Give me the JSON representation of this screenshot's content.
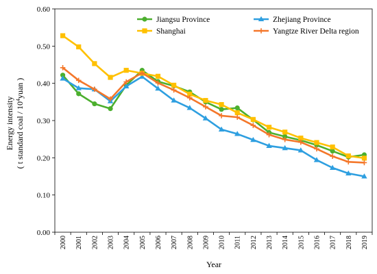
{
  "chart_data": {
    "type": "line",
    "xlabel": "Year",
    "ylabel_line1": "Energy intensity",
    "ylabel_line2_pre": "( t standard coal / 10",
    "ylabel_line2_sup": "4",
    "ylabel_line2_post": "yuan )",
    "categories": [
      "2000",
      "2001",
      "2002",
      "2003",
      "2004",
      "2005",
      "2006",
      "2007",
      "2008",
      "2009",
      "2010",
      "2011",
      "2012",
      "2013",
      "2014",
      "2015",
      "2016",
      "2017",
      "2018",
      "2019"
    ],
    "ylim": [
      0,
      0.6
    ],
    "yticks": [
      "0.00",
      "0.10",
      "0.20",
      "0.30",
      "0.40",
      "0.50",
      "0.60"
    ],
    "legend_position": "top",
    "series": [
      {
        "name": "Jiangsu Province",
        "color": "#4caf2e",
        "marker": "circle",
        "values": [
          0.422,
          0.372,
          0.345,
          0.332,
          0.395,
          0.435,
          0.405,
          0.393,
          0.377,
          0.35,
          0.33,
          0.334,
          0.302,
          0.268,
          0.257,
          0.247,
          0.234,
          0.218,
          0.202,
          0.208
        ]
      },
      {
        "name": "Zhejiang Province",
        "color": "#2e9fe0",
        "marker": "triangle",
        "values": [
          0.413,
          0.387,
          0.384,
          0.352,
          0.392,
          0.418,
          0.386,
          0.354,
          0.334,
          0.306,
          0.276,
          0.264,
          0.248,
          0.232,
          0.226,
          0.22,
          0.194,
          0.173,
          0.158,
          0.15
        ]
      },
      {
        "name": "Shanghai",
        "color": "#ffc000",
        "marker": "square",
        "values": [
          0.528,
          0.498,
          0.453,
          0.416,
          0.435,
          0.427,
          0.419,
          0.395,
          0.371,
          0.354,
          0.343,
          0.321,
          0.303,
          0.282,
          0.269,
          0.253,
          0.241,
          0.229,
          0.205,
          0.199
        ]
      },
      {
        "name": "Yangtze River Delta region",
        "color": "#f4772a",
        "marker": "plus",
        "values": [
          0.442,
          0.408,
          0.384,
          0.358,
          0.404,
          0.428,
          0.401,
          0.382,
          0.361,
          0.337,
          0.313,
          0.309,
          0.287,
          0.262,
          0.249,
          0.242,
          0.224,
          0.204,
          0.189,
          0.187
        ]
      }
    ]
  }
}
